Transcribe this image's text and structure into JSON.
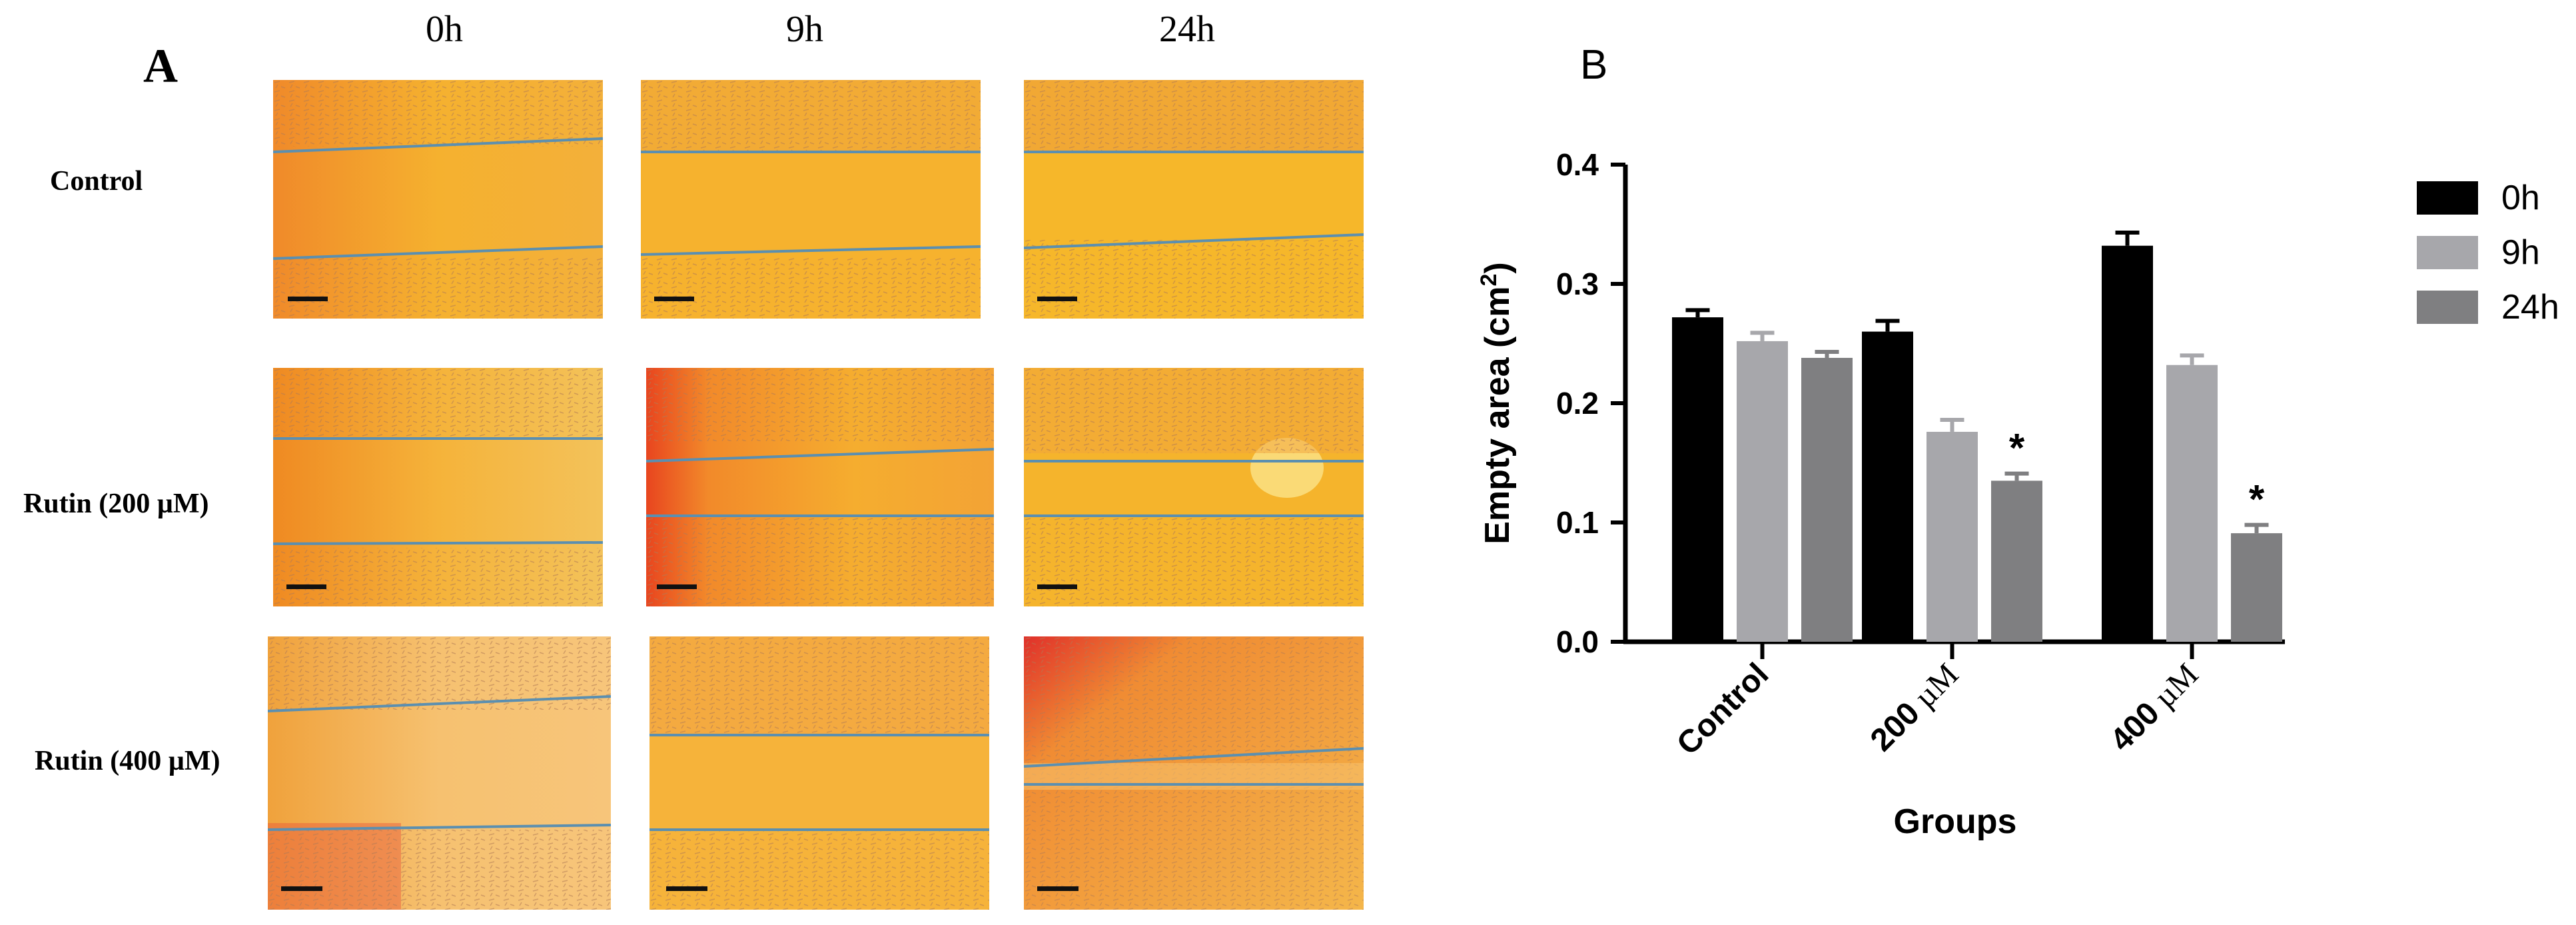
{
  "panel_a": {
    "letter": "A",
    "columns": [
      "0h",
      "9h",
      "24h"
    ],
    "rows": [
      "Control",
      "Rutin (200 µM)",
      "Rutin (400 µM)"
    ]
  },
  "panel_b": {
    "letter": "B"
  },
  "colors": {
    "h0": "#000000",
    "h9": "#a7a7ab",
    "h24": "#7f7f81",
    "scratch_line": "#5b8fb0"
  },
  "chart_data": {
    "type": "bar",
    "title": "",
    "xlabel": "Groups",
    "ylabel": "Empty area (cm2)",
    "ylabel_main": "Empty area (cm",
    "ylabel_sup": "2",
    "ylabel_close": ")",
    "categories": [
      {
        "bold": "Control",
        "unit": ""
      },
      {
        "bold": "200",
        "unit": " µM"
      },
      {
        "bold": "400",
        "unit": " µM"
      }
    ],
    "series": [
      {
        "name": "0h",
        "values": [
          0.272,
          0.26,
          0.332
        ],
        "errors": [
          0.006,
          0.009,
          0.011
        ]
      },
      {
        "name": "9h",
        "values": [
          0.252,
          0.176,
          0.232
        ],
        "errors": [
          0.007,
          0.01,
          0.008
        ]
      },
      {
        "name": "24h",
        "values": [
          0.238,
          0.135,
          0.091
        ],
        "errors": [
          0.005,
          0.006,
          0.007
        ]
      }
    ],
    "annotations": [
      {
        "series": 2,
        "category": 1,
        "text": "*"
      },
      {
        "series": 2,
        "category": 2,
        "text": "*"
      }
    ],
    "ylim": [
      0,
      0.4
    ],
    "yticks": [
      "0.0",
      "0.1",
      "0.2",
      "0.3",
      "0.4"
    ],
    "legend": [
      "0h",
      "9h",
      "24h"
    ]
  }
}
